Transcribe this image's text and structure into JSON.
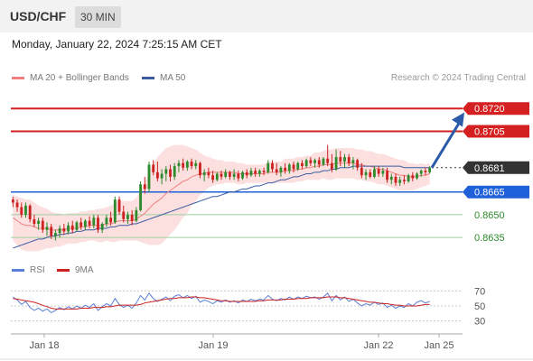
{
  "header": {
    "symbol": "USD/CHF",
    "timeframe": "30 MIN",
    "datetime": "Monday, January 22, 2024 7:25:15 AM CET"
  },
  "legend": {
    "ma20": "MA 20 + Bollinger Bands",
    "ma50": "MA 50",
    "credit": "Research © 2024 Trading Central",
    "ma20_color": "#f08080",
    "ma50_color": "#3a5da0"
  },
  "rsi_legend": {
    "rsi": "RSI",
    "ma9": "9MA",
    "rsi_color": "#5b7fd6",
    "ma9_color": "#cc2222"
  },
  "chart_data": {
    "type": "candlestick",
    "price_range": [
      0.8622,
      0.8735
    ],
    "levels": [
      {
        "label": "0.8720",
        "value": 0.872,
        "style": "resistance",
        "color": "#d42020"
      },
      {
        "label": "0.8705",
        "value": 0.8705,
        "style": "resistance",
        "color": "#d42020"
      },
      {
        "label": "0.8681",
        "value": 0.8681,
        "style": "current",
        "color": "#333333"
      },
      {
        "label": "0.8665",
        "value": 0.8665,
        "style": "pivot",
        "color": "#2060d8"
      },
      {
        "label": "0.8650",
        "value": 0.865,
        "style": "support",
        "color": "#2d8a2d"
      },
      {
        "label": "0.8635",
        "value": 0.8635,
        "style": "support",
        "color": "#2d8a2d"
      }
    ],
    "x_ticks": [
      "Jan 18",
      "Jan 19",
      "Jan 22",
      "Jan 25"
    ],
    "rsi_ticks": [
      "70",
      "50",
      "30"
    ],
    "rsi_range": [
      15,
      85
    ],
    "candle_colors": {
      "up": "#2d8a2d",
      "down": "#cc2222"
    },
    "candles": [
      [
        0.866,
        0.8662,
        0.8655,
        0.8658
      ],
      [
        0.8658,
        0.866,
        0.8652,
        0.8655
      ],
      [
        0.8655,
        0.8658,
        0.8648,
        0.865
      ],
      [
        0.865,
        0.8658,
        0.8648,
        0.8656
      ],
      [
        0.8656,
        0.8657,
        0.8645,
        0.8647
      ],
      [
        0.8647,
        0.865,
        0.8642,
        0.8644
      ],
      [
        0.8644,
        0.8648,
        0.864,
        0.8646
      ],
      [
        0.8646,
        0.8648,
        0.8638,
        0.864
      ],
      [
        0.864,
        0.8645,
        0.8636,
        0.8642
      ],
      [
        0.8642,
        0.8644,
        0.8634,
        0.8636
      ],
      [
        0.8636,
        0.864,
        0.8633,
        0.8638
      ],
      [
        0.8638,
        0.8643,
        0.8635,
        0.8641
      ],
      [
        0.8641,
        0.8644,
        0.8637,
        0.8639
      ],
      [
        0.8639,
        0.8645,
        0.8637,
        0.8643
      ],
      [
        0.8643,
        0.8646,
        0.8638,
        0.864
      ],
      [
        0.864,
        0.8646,
        0.8639,
        0.8645
      ],
      [
        0.8645,
        0.8648,
        0.864,
        0.8642
      ],
      [
        0.8642,
        0.8647,
        0.864,
        0.8646
      ],
      [
        0.8646,
        0.8649,
        0.8641,
        0.8643
      ],
      [
        0.8643,
        0.865,
        0.8641,
        0.8648
      ],
      [
        0.8648,
        0.865,
        0.8638,
        0.864
      ],
      [
        0.864,
        0.8645,
        0.8638,
        0.8644
      ],
      [
        0.8644,
        0.865,
        0.8642,
        0.8648
      ],
      [
        0.8648,
        0.8652,
        0.8643,
        0.8645
      ],
      [
        0.8645,
        0.8662,
        0.8644,
        0.866
      ],
      [
        0.866,
        0.8662,
        0.865,
        0.8652
      ],
      [
        0.8652,
        0.8656,
        0.8645,
        0.8647
      ],
      [
        0.8647,
        0.8652,
        0.8644,
        0.865
      ],
      [
        0.865,
        0.8653,
        0.8643,
        0.8646
      ],
      [
        0.8646,
        0.8655,
        0.8645,
        0.8653
      ],
      [
        0.8653,
        0.8672,
        0.8652,
        0.867
      ],
      [
        0.867,
        0.8675,
        0.8664,
        0.8667
      ],
      [
        0.8667,
        0.8685,
        0.8665,
        0.8683
      ],
      [
        0.8683,
        0.8686,
        0.8676,
        0.8678
      ],
      [
        0.8678,
        0.8685,
        0.8672,
        0.8674
      ],
      [
        0.8674,
        0.868,
        0.867,
        0.8677
      ],
      [
        0.8677,
        0.8682,
        0.8672,
        0.868
      ],
      [
        0.868,
        0.8683,
        0.8672,
        0.8675
      ],
      [
        0.8675,
        0.8684,
        0.8673,
        0.8682
      ],
      [
        0.8682,
        0.8686,
        0.8678,
        0.8684
      ],
      [
        0.8684,
        0.8687,
        0.8679,
        0.8681
      ],
      [
        0.8681,
        0.8686,
        0.8679,
        0.8685
      ],
      [
        0.8685,
        0.8687,
        0.868,
        0.8682
      ],
      [
        0.8682,
        0.8686,
        0.868,
        0.8684
      ],
      [
        0.8684,
        0.8685,
        0.8674,
        0.8676
      ],
      [
        0.8676,
        0.868,
        0.8672,
        0.8678
      ],
      [
        0.8678,
        0.8681,
        0.8674,
        0.8676
      ],
      [
        0.8676,
        0.8679,
        0.8671,
        0.8673
      ],
      [
        0.8673,
        0.8678,
        0.8672,
        0.8677
      ],
      [
        0.8677,
        0.8679,
        0.8673,
        0.8675
      ],
      [
        0.8675,
        0.868,
        0.8674,
        0.8678
      ],
      [
        0.8678,
        0.8679,
        0.8673,
        0.8675
      ],
      [
        0.8675,
        0.868,
        0.8673,
        0.8677
      ],
      [
        0.8677,
        0.8679,
        0.8672,
        0.8674
      ],
      [
        0.8674,
        0.8679,
        0.8673,
        0.8678
      ],
      [
        0.8678,
        0.868,
        0.8674,
        0.8676
      ],
      [
        0.8676,
        0.8681,
        0.8675,
        0.8679
      ],
      [
        0.8679,
        0.8681,
        0.8675,
        0.8677
      ],
      [
        0.8677,
        0.868,
        0.8675,
        0.8679
      ],
      [
        0.8679,
        0.8681,
        0.8676,
        0.8678
      ],
      [
        0.8678,
        0.8686,
        0.8677,
        0.8684
      ],
      [
        0.8684,
        0.8686,
        0.8678,
        0.868
      ],
      [
        0.868,
        0.8684,
        0.8676,
        0.8678
      ],
      [
        0.8678,
        0.8682,
        0.8675,
        0.8681
      ],
      [
        0.8681,
        0.8684,
        0.8677,
        0.8679
      ],
      [
        0.8679,
        0.8684,
        0.8677,
        0.8683
      ],
      [
        0.8683,
        0.8685,
        0.8678,
        0.868
      ],
      [
        0.868,
        0.8685,
        0.8679,
        0.8684
      ],
      [
        0.8684,
        0.8686,
        0.868,
        0.8682
      ],
      [
        0.8682,
        0.8687,
        0.8681,
        0.8686
      ],
      [
        0.8686,
        0.8688,
        0.8682,
        0.8684
      ],
      [
        0.8684,
        0.8687,
        0.8681,
        0.8686
      ],
      [
        0.8686,
        0.8688,
        0.8681,
        0.8683
      ],
      [
        0.8683,
        0.8688,
        0.8682,
        0.8687
      ],
      [
        0.8687,
        0.8696,
        0.8682,
        0.8684
      ],
      [
        0.8684,
        0.869,
        0.8678,
        0.868
      ],
      [
        0.868,
        0.8693,
        0.8679,
        0.8688
      ],
      [
        0.8688,
        0.8692,
        0.8682,
        0.8685
      ],
      [
        0.8685,
        0.869,
        0.8681,
        0.8688
      ],
      [
        0.8688,
        0.869,
        0.8682,
        0.8684
      ],
      [
        0.8684,
        0.8688,
        0.868,
        0.8686
      ],
      [
        0.8686,
        0.8687,
        0.8679,
        0.8681
      ],
      [
        0.8681,
        0.8684,
        0.8674,
        0.8676
      ],
      [
        0.8676,
        0.868,
        0.8673,
        0.8678
      ],
      [
        0.8678,
        0.868,
        0.8674,
        0.8675
      ],
      [
        0.8675,
        0.8682,
        0.8674,
        0.868
      ],
      [
        0.868,
        0.8682,
        0.8675,
        0.8677
      ],
      [
        0.8677,
        0.8681,
        0.8675,
        0.8679
      ],
      [
        0.8679,
        0.8681,
        0.8671,
        0.8673
      ],
      [
        0.8673,
        0.8677,
        0.867,
        0.8675
      ],
      [
        0.8675,
        0.8677,
        0.8669,
        0.8671
      ],
      [
        0.8671,
        0.8675,
        0.8669,
        0.8673
      ],
      [
        0.8673,
        0.8676,
        0.867,
        0.8672
      ],
      [
        0.8672,
        0.8677,
        0.8671,
        0.8676
      ],
      [
        0.8676,
        0.8678,
        0.8672,
        0.8674
      ],
      [
        0.8674,
        0.8678,
        0.8673,
        0.8677
      ],
      [
        0.8677,
        0.868,
        0.8675,
        0.8679
      ],
      [
        0.8679,
        0.8681,
        0.8676,
        0.8678
      ],
      [
        0.8678,
        0.8682,
        0.8677,
        0.8681
      ]
    ],
    "ma20": [
      0.8648,
      0.8646,
      0.8644,
      0.8643,
      0.8643,
      0.8642,
      0.8641,
      0.8641,
      0.8641,
      0.864,
      0.864,
      0.864,
      0.864,
      0.8641,
      0.8641,
      0.8641,
      0.8642,
      0.8642,
      0.8643,
      0.8643,
      0.8643,
      0.8643,
      0.8644,
      0.8644,
      0.8645,
      0.8646,
      0.8646,
      0.8646,
      0.8646,
      0.8647,
      0.8649,
      0.8651,
      0.8654,
      0.8657,
      0.8659,
      0.8661,
      0.8664,
      0.8666,
      0.8668,
      0.867,
      0.8672,
      0.8673,
      0.8675,
      0.8676,
      0.8677,
      0.8677,
      0.8678,
      0.8678,
      0.8678,
      0.8678,
      0.8678,
      0.8678,
      0.8678,
      0.8677,
      0.8677,
      0.8677,
      0.8677,
      0.8677,
      0.8677,
      0.8677,
      0.8678,
      0.8678,
      0.8678,
      0.8678,
      0.8679,
      0.8679,
      0.8679,
      0.868,
      0.868,
      0.8681,
      0.8681,
      0.8682,
      0.8682,
      0.8683,
      0.8683,
      0.8683,
      0.8684,
      0.8684,
      0.8684,
      0.8684,
      0.8684,
      0.8683,
      0.8683,
      0.8682,
      0.8682,
      0.8681,
      0.868,
      0.868,
      0.8679,
      0.8678,
      0.8677,
      0.8676,
      0.8676,
      0.8675,
      0.8675,
      0.8675,
      0.8676,
      0.8676,
      0.8677
    ],
    "ma50": [
      0.8628,
      0.8629,
      0.863,
      0.8631,
      0.8632,
      0.8633,
      0.8634,
      0.8634,
      0.8635,
      0.8636,
      0.8636,
      0.8637,
      0.8637,
      0.8638,
      0.8638,
      0.8639,
      0.8639,
      0.864,
      0.864,
      0.864,
      0.8641,
      0.8641,
      0.8641,
      0.8642,
      0.8642,
      0.8643,
      0.8643,
      0.8643,
      0.8644,
      0.8644,
      0.8645,
      0.8646,
      0.8647,
      0.8648,
      0.8649,
      0.865,
      0.8651,
      0.8652,
      0.8653,
      0.8654,
      0.8655,
      0.8656,
      0.8657,
      0.8658,
      0.8659,
      0.866,
      0.8661,
      0.8662,
      0.8662,
      0.8663,
      0.8664,
      0.8665,
      0.8665,
      0.8666,
      0.8667,
      0.8667,
      0.8668,
      0.8669,
      0.8669,
      0.867,
      0.8671,
      0.8671,
      0.8672,
      0.8673,
      0.8673,
      0.8674,
      0.8675,
      0.8675,
      0.8676,
      0.8677,
      0.8677,
      0.8678,
      0.8678,
      0.8679,
      0.8679,
      0.868,
      0.868,
      0.8681,
      0.8681,
      0.8681,
      0.8682,
      0.8682,
      0.8682,
      0.8682,
      0.8682,
      0.8682,
      0.8682,
      0.8682,
      0.8682,
      0.8682,
      0.8682,
      0.8682,
      0.8681,
      0.8681,
      0.8681,
      0.8681,
      0.8681,
      0.8681,
      0.8681
    ],
    "band_width": [
      0.0015,
      0.0016,
      0.0017,
      0.0017,
      0.0017,
      0.0016,
      0.0015,
      0.0014,
      0.0013,
      0.0012,
      0.0011,
      0.0011,
      0.001,
      0.001,
      0.001,
      0.001,
      0.001,
      0.001,
      0.001,
      0.001,
      0.0011,
      0.0011,
      0.0011,
      0.0012,
      0.0013,
      0.0013,
      0.0013,
      0.0013,
      0.0013,
      0.0014,
      0.0017,
      0.002,
      0.0024,
      0.0027,
      0.0029,
      0.003,
      0.003,
      0.0029,
      0.0028,
      0.0026,
      0.0024,
      0.0022,
      0.0019,
      0.0017,
      0.0014,
      0.0012,
      0.001,
      0.0009,
      0.0008,
      0.0008,
      0.0007,
      0.0007,
      0.0007,
      0.0007,
      0.0007,
      0.0006,
      0.0006,
      0.0006,
      0.0006,
      0.0006,
      0.0007,
      0.0007,
      0.0007,
      0.0007,
      0.0008,
      0.0008,
      0.0008,
      0.0008,
      0.0008,
      0.0008,
      0.0008,
      0.0009,
      0.0009,
      0.0009,
      0.001,
      0.001,
      0.001,
      0.001,
      0.001,
      0.001,
      0.001,
      0.001,
      0.001,
      0.001,
      0.001,
      0.001,
      0.001,
      0.001,
      0.001,
      0.001,
      0.001,
      0.001,
      0.001,
      0.0009,
      0.0009,
      0.0008,
      0.0008,
      0.0007,
      0.0007
    ],
    "rsi": [
      62,
      58,
      52,
      56,
      48,
      44,
      47,
      43,
      46,
      41,
      44,
      48,
      45,
      49,
      46,
      50,
      47,
      51,
      48,
      53,
      44,
      49,
      53,
      50,
      60,
      52,
      48,
      51,
      47,
      54,
      64,
      58,
      67,
      60,
      56,
      59,
      62,
      57,
      63,
      65,
      61,
      64,
      60,
      63,
      55,
      58,
      56,
      53,
      57,
      55,
      58,
      55,
      57,
      54,
      58,
      56,
      59,
      57,
      59,
      58,
      64,
      59,
      57,
      60,
      58,
      62,
      59,
      62,
      60,
      63,
      61,
      62,
      59,
      62,
      67,
      57,
      64,
      58,
      62,
      56,
      59,
      54,
      50,
      53,
      51,
      55,
      52,
      54,
      48,
      51,
      47,
      50,
      48,
      53,
      50,
      55,
      57,
      54,
      56
    ],
    "rsi_ma9": [
      60,
      59,
      58,
      57,
      56,
      55,
      53,
      51,
      49,
      47,
      46,
      46,
      46,
      46,
      46,
      46,
      47,
      47,
      47,
      48,
      48,
      48,
      49,
      49,
      50,
      51,
      51,
      51,
      51,
      51,
      52,
      54,
      55,
      56,
      57,
      58,
      59,
      60,
      60,
      61,
      61,
      61,
      62,
      62,
      61,
      61,
      60,
      59,
      58,
      57,
      57,
      56,
      56,
      56,
      56,
      56,
      56,
      56,
      57,
      57,
      58,
      58,
      58,
      58,
      59,
      59,
      59,
      60,
      60,
      60,
      61,
      61,
      61,
      61,
      62,
      62,
      62,
      61,
      61,
      60,
      59,
      58,
      57,
      56,
      55,
      55,
      54,
      53,
      53,
      52,
      51,
      51,
      50,
      50,
      50,
      50,
      51,
      52,
      52
    ],
    "forecast": {
      "from": 0.8681,
      "to": 0.8715
    }
  }
}
